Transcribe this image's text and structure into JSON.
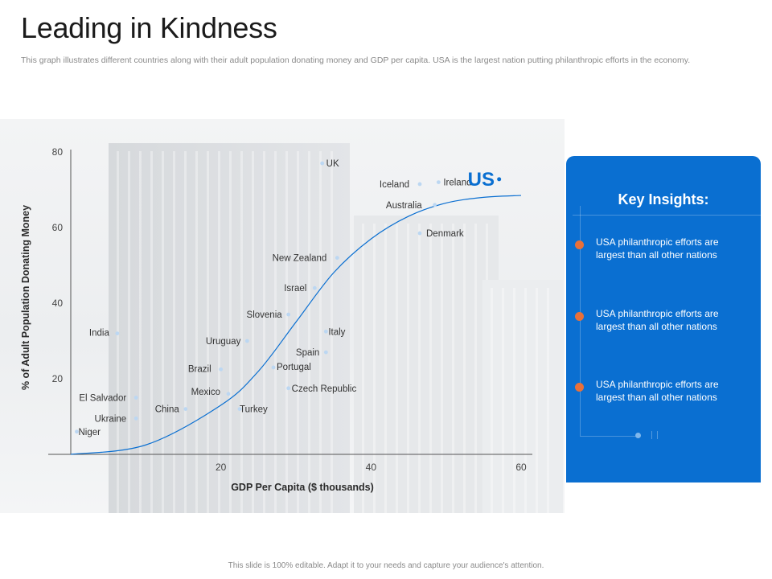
{
  "page": {
    "title": "Leading in Kindness",
    "subtitle": "This graph illustrates different countries along with their adult population donating money and GDP per capita. USA is the largest nation putting philanthropic efforts in the economy.",
    "footer": "This slide is 100% editable. Adapt it to your needs and capture your audience's attention."
  },
  "insights": {
    "title": "Key Insights:",
    "items": [
      "USA philanthropic efforts are largest than all other nations",
      "USA philanthropic efforts are largest than all other nations",
      "USA philanthropic efforts are largest than all other nations"
    ]
  },
  "colors": {
    "accent": "#0a6fd1",
    "bullet": "#e8703a",
    "point": "#bcd7f2"
  },
  "chart_data": {
    "type": "scatter",
    "title": "",
    "xlabel": "GDP Per Capita ($ thousands)",
    "ylabel": "% of Adult Population Donating Money",
    "xlim": [
      0,
      60
    ],
    "ylim": [
      0,
      80
    ],
    "xticks": [
      "20",
      "40",
      "60"
    ],
    "yticks": [
      "20",
      "40",
      "60",
      "80"
    ],
    "points": [
      {
        "label": "Niger",
        "x": 0.8,
        "y": 6
      },
      {
        "label": "Ukraine",
        "x": 8.7,
        "y": 9.5
      },
      {
        "label": "El Salvador",
        "x": 8.7,
        "y": 15
      },
      {
        "label": "China",
        "x": 15.3,
        "y": 12
      },
      {
        "label": "Mexico",
        "x": 21,
        "y": 16
      },
      {
        "label": "Turkey",
        "x": 22.5,
        "y": 12
      },
      {
        "label": "Brazil",
        "x": 20,
        "y": 22.5
      },
      {
        "label": "Uruguay",
        "x": 23.5,
        "y": 30
      },
      {
        "label": "India",
        "x": 6.2,
        "y": 32
      },
      {
        "label": "Portugal",
        "x": 27,
        "y": 23
      },
      {
        "label": "Czech Republic",
        "x": 29,
        "y": 17.5
      },
      {
        "label": "Slovenia",
        "x": 29,
        "y": 37
      },
      {
        "label": "Spain",
        "x": 34,
        "y": 27
      },
      {
        "label": "Italy",
        "x": 34,
        "y": 32.5
      },
      {
        "label": "Israel",
        "x": 32.5,
        "y": 44
      },
      {
        "label": "New Zealand",
        "x": 35.5,
        "y": 52
      },
      {
        "label": "Denmark",
        "x": 46.5,
        "y": 58.5
      },
      {
        "label": "Australia",
        "x": 48.5,
        "y": 66
      },
      {
        "label": "Iceland",
        "x": 46.5,
        "y": 71.5
      },
      {
        "label": "Ireland",
        "x": 49,
        "y": 72
      },
      {
        "label": "UK",
        "x": 33.5,
        "y": 77
      },
      {
        "label": "US",
        "x": 59,
        "y": 73
      }
    ],
    "trend": [
      [
        0,
        0
      ],
      [
        10,
        2.5
      ],
      [
        20,
        13
      ],
      [
        25,
        22
      ],
      [
        30,
        35
      ],
      [
        35,
        48
      ],
      [
        40,
        57
      ],
      [
        45,
        63
      ],
      [
        50,
        66.5
      ],
      [
        55,
        68
      ],
      [
        60,
        68.5
      ]
    ],
    "grid": false,
    "legend": "none"
  }
}
